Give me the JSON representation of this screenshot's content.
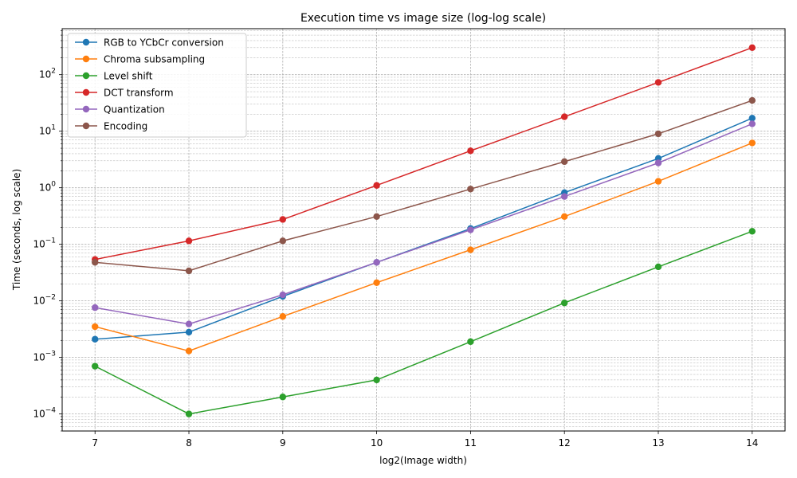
{
  "chart_data": {
    "type": "line",
    "title": "Execution time vs image size (log-log scale)",
    "xlabel": "log2(Image width)",
    "ylabel": "Time (seconds, log scale)",
    "x": [
      7,
      8,
      9,
      10,
      11,
      12,
      13,
      14
    ],
    "x_ticks": [
      "7",
      "8",
      "9",
      "10",
      "11",
      "12",
      "13",
      "14"
    ],
    "xlim": [
      6.65,
      14.35
    ],
    "y_scale": "log",
    "ylim": [
      5e-05,
      650
    ],
    "y_ticks": [
      {
        "value": 0.0001,
        "base": "10",
        "exp": "−4"
      },
      {
        "value": 0.001,
        "base": "10",
        "exp": "−3"
      },
      {
        "value": 0.01,
        "base": "10",
        "exp": "−2"
      },
      {
        "value": 0.1,
        "base": "10",
        "exp": "−1"
      },
      {
        "value": 1,
        "base": "10",
        "exp": "0"
      },
      {
        "value": 10,
        "base": "10",
        "exp": "1"
      },
      {
        "value": 100,
        "base": "10",
        "exp": "2"
      }
    ],
    "grid": true,
    "legend_position": "top-left",
    "series": [
      {
        "name": "RGB to YCbCr conversion",
        "color": "#1f77b4",
        "values": [
          0.0021,
          0.0028,
          0.012,
          0.048,
          0.19,
          0.82,
          3.3,
          17
        ]
      },
      {
        "name": "Chroma subsampling",
        "color": "#ff7f0e",
        "values": [
          0.0035,
          0.0013,
          0.0053,
          0.021,
          0.08,
          0.31,
          1.3,
          6.2
        ]
      },
      {
        "name": "Level shift",
        "color": "#2ca02c",
        "values": [
          0.0007,
          0.0001,
          0.0002,
          0.0004,
          0.0019,
          0.0092,
          0.04,
          0.17
        ]
      },
      {
        "name": "DCT transform",
        "color": "#d62728",
        "values": [
          0.054,
          0.115,
          0.275,
          1.1,
          4.5,
          18,
          73,
          300
        ]
      },
      {
        "name": "Quantization",
        "color": "#9467bd",
        "values": [
          0.0076,
          0.0039,
          0.0128,
          0.048,
          0.18,
          0.7,
          2.75,
          13.5
        ]
      },
      {
        "name": "Encoding",
        "color": "#8c564b",
        "values": [
          0.048,
          0.034,
          0.115,
          0.31,
          0.95,
          2.9,
          9,
          35
        ]
      }
    ]
  }
}
